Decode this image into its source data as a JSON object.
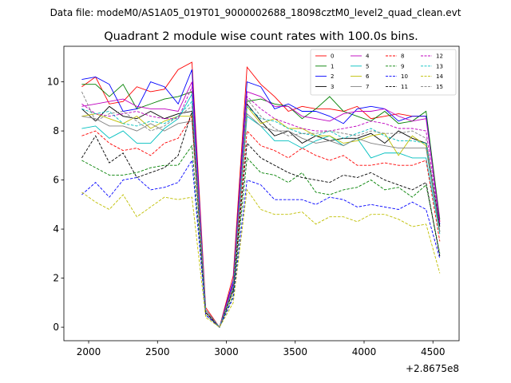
{
  "chart_data": {
    "type": "line",
    "suptitle": "Data file: modeM0/AS1A05_019T01_9000002688_18098cztM0_level2_quad_clean.evt",
    "title": "Quadrant 2 module wise count rates with 100.0s bins.",
    "xlabel": "",
    "ylabel": "",
    "x_offset_label": "+2.8675e8",
    "xlim": [
      1820,
      4690
    ],
    "ylim": [
      -0.55,
      11.45
    ],
    "xticks": [
      2000,
      2500,
      3000,
      3500,
      4000,
      4500
    ],
    "yticks": [
      0,
      2,
      4,
      6,
      8,
      10
    ],
    "xtick_labels": [
      "2000",
      "2500",
      "3000",
      "3500",
      "4000",
      "4500"
    ],
    "ytick_labels": [
      "0",
      "2",
      "4",
      "6",
      "8",
      "10"
    ],
    "legend_position": "upper right",
    "x": [
      1950,
      2050,
      2150,
      2250,
      2350,
      2450,
      2550,
      2650,
      2750,
      2850,
      2950,
      3050,
      3150,
      3250,
      3350,
      3450,
      3550,
      3650,
      3750,
      3850,
      3950,
      4050,
      4150,
      4250,
      4350,
      4450,
      4550
    ],
    "series": [
      {
        "name": "0",
        "color": "#ff0000",
        "dashed": false,
        "values": [
          9.8,
          10.2,
          9.1,
          9.2,
          9.8,
          9.6,
          9.7,
          10.5,
          10.8,
          0.8,
          0.0,
          2.1,
          10.6,
          9.9,
          9.4,
          8.8,
          9.0,
          8.9,
          8.9,
          8.8,
          9.0,
          8.5,
          8.6,
          8.7,
          8.6,
          8.6,
          4.3
        ]
      },
      {
        "name": "1",
        "color": "#008000",
        "dashed": false,
        "values": [
          9.9,
          9.9,
          9.4,
          9.9,
          8.9,
          9.1,
          9.3,
          9.4,
          9.6,
          0.7,
          0.0,
          1.8,
          9.2,
          9.3,
          9.1,
          9.0,
          8.5,
          8.9,
          9.4,
          8.8,
          8.6,
          8.4,
          8.8,
          8.3,
          8.4,
          8.8,
          4.4
        ]
      },
      {
        "name": "2",
        "color": "#0000ff",
        "dashed": false,
        "values": [
          10.1,
          10.2,
          9.9,
          8.8,
          8.9,
          10.0,
          9.8,
          9.1,
          10.5,
          0.6,
          0.0,
          1.9,
          10.0,
          9.8,
          8.9,
          9.1,
          8.8,
          8.8,
          8.6,
          8.3,
          8.9,
          9.0,
          8.9,
          8.4,
          8.6,
          8.6,
          4.2
        ]
      },
      {
        "name": "3",
        "color": "#000000",
        "dashed": false,
        "values": [
          8.9,
          8.4,
          9.0,
          8.6,
          8.5,
          8.8,
          8.5,
          8.7,
          8.8,
          0.6,
          0.0,
          1.7,
          9.1,
          8.4,
          7.8,
          8.0,
          7.5,
          7.8,
          7.6,
          7.7,
          7.7,
          7.9,
          7.5,
          8.0,
          7.7,
          7.5,
          4.1
        ]
      },
      {
        "name": "4",
        "color": "#bf00bf",
        "dashed": false,
        "values": [
          9.0,
          9.1,
          9.2,
          9.3,
          9.0,
          8.9,
          8.9,
          8.8,
          10.0,
          0.7,
          0.0,
          1.8,
          9.6,
          9.4,
          9.0,
          9.0,
          8.6,
          8.5,
          8.4,
          8.7,
          8.8,
          8.8,
          8.9,
          8.6,
          8.4,
          8.5,
          4.3
        ]
      },
      {
        "name": "5",
        "color": "#00bfbf",
        "dashed": false,
        "values": [
          8.1,
          8.2,
          7.7,
          8.0,
          7.5,
          7.5,
          8.1,
          8.5,
          9.5,
          0.6,
          0.0,
          1.5,
          8.6,
          8.2,
          7.6,
          7.6,
          7.3,
          7.6,
          7.8,
          7.4,
          7.7,
          6.9,
          7.1,
          7.1,
          6.9,
          6.9,
          3.8
        ]
      },
      {
        "name": "6",
        "color": "#bfbf00",
        "dashed": false,
        "values": [
          8.6,
          8.7,
          8.5,
          8.3,
          8.6,
          8.1,
          8.4,
          8.6,
          8.6,
          0.6,
          0.0,
          1.5,
          9.0,
          8.3,
          8.5,
          8.1,
          8.1,
          7.8,
          7.8,
          7.5,
          7.6,
          7.8,
          7.9,
          7.0,
          7.8,
          7.4,
          3.9
        ]
      },
      {
        "name": "7",
        "color": "#808080",
        "dashed": false,
        "values": [
          8.6,
          8.5,
          8.2,
          8.2,
          8.0,
          8.3,
          8.0,
          8.3,
          8.4,
          0.6,
          0.0,
          1.6,
          8.7,
          8.2,
          8.0,
          8.0,
          7.7,
          7.5,
          7.6,
          7.4,
          7.7,
          7.5,
          7.4,
          7.3,
          7.3,
          7.3,
          3.9
        ]
      },
      {
        "name": "8",
        "color": "#ff0000",
        "dashed": true,
        "values": [
          7.8,
          8.0,
          7.5,
          7.2,
          7.3,
          7.0,
          7.5,
          7.7,
          8.6,
          0.6,
          0.0,
          1.5,
          8.0,
          7.4,
          7.2,
          6.9,
          7.3,
          7.0,
          6.8,
          7.0,
          6.6,
          6.6,
          6.7,
          6.6,
          6.6,
          6.8,
          3.5
        ]
      },
      {
        "name": "9",
        "color": "#008000",
        "dashed": true,
        "values": [
          6.8,
          6.5,
          6.2,
          6.2,
          6.3,
          6.5,
          6.6,
          6.6,
          7.4,
          0.5,
          0.0,
          1.3,
          6.9,
          6.3,
          6.2,
          5.9,
          6.3,
          5.5,
          5.4,
          5.6,
          5.7,
          6.0,
          5.6,
          5.7,
          5.3,
          5.8,
          3.0
        ]
      },
      {
        "name": "10",
        "color": "#0000ff",
        "dashed": true,
        "values": [
          5.4,
          5.9,
          5.3,
          6.0,
          6.1,
          5.6,
          5.7,
          5.9,
          6.8,
          0.5,
          0.0,
          1.2,
          6.0,
          5.8,
          5.2,
          5.2,
          5.2,
          5.0,
          5.3,
          5.2,
          4.9,
          5.0,
          4.9,
          4.8,
          5.1,
          4.8,
          2.8
        ]
      },
      {
        "name": "11",
        "color": "#000000",
        "dashed": true,
        "values": [
          6.9,
          7.8,
          6.7,
          7.1,
          6.1,
          6.3,
          6.5,
          7.0,
          8.8,
          0.6,
          0.0,
          1.5,
          7.5,
          6.9,
          6.6,
          6.3,
          6.1,
          6.0,
          5.9,
          6.2,
          6.1,
          6.3,
          6.0,
          5.8,
          5.6,
          5.9,
          2.9
        ]
      },
      {
        "name": "12",
        "color": "#bf00bf",
        "dashed": true,
        "values": [
          9.1,
          8.7,
          8.6,
          8.7,
          8.8,
          8.6,
          8.5,
          8.5,
          9.8,
          0.7,
          0.0,
          1.7,
          9.4,
          8.9,
          8.5,
          8.3,
          8.1,
          8.0,
          8.0,
          8.1,
          8.2,
          8.4,
          8.3,
          8.1,
          8.1,
          8.0,
          4.2
        ]
      },
      {
        "name": "13",
        "color": "#00bfbf",
        "dashed": true,
        "values": [
          8.9,
          8.7,
          8.8,
          8.3,
          8.2,
          8.4,
          8.3,
          8.6,
          9.2,
          0.7,
          0.0,
          1.6,
          9.0,
          8.5,
          8.4,
          8.1,
          7.9,
          7.8,
          8.0,
          7.7,
          7.9,
          8.1,
          7.8,
          7.6,
          7.6,
          7.5,
          3.9
        ]
      },
      {
        "name": "14",
        "color": "#bfbf00",
        "dashed": true,
        "values": [
          5.5,
          5.1,
          4.8,
          5.4,
          4.5,
          4.9,
          5.3,
          5.2,
          5.3,
          0.4,
          0.0,
          1.0,
          5.6,
          4.8,
          4.6,
          4.6,
          4.7,
          4.2,
          4.5,
          4.5,
          4.3,
          4.6,
          4.6,
          4.4,
          4.1,
          4.2,
          2.2
        ]
      },
      {
        "name": "15",
        "color": "#808080",
        "dashed": true,
        "values": [
          9.6,
          8.4,
          8.7,
          8.8,
          8.4,
          8.0,
          8.2,
          8.6,
          9.0,
          0.7,
          0.0,
          1.7,
          9.3,
          8.6,
          8.1,
          7.8,
          7.9,
          7.9,
          8.0,
          7.9,
          7.8,
          8.0,
          7.9,
          7.9,
          8.0,
          7.7,
          3.9
        ]
      }
    ]
  }
}
